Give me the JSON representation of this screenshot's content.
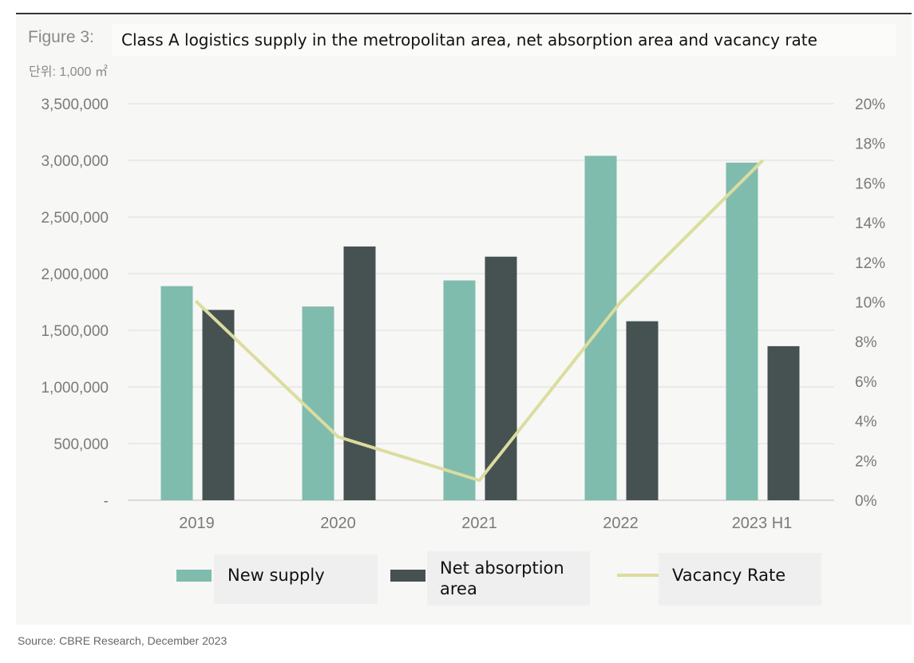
{
  "figure_label": "Figure 3:",
  "title": "Class A logistics supply in the metropolitan area, net absorption area and vacancy rate",
  "unit_label": "단위: 1,000 ㎡",
  "source": "Source: CBRE Research, December 2023",
  "colors": {
    "new_supply": "#7fbcad",
    "net_absorption": "#465252",
    "vacancy_rate": "#dcdca0",
    "grid": "#dedede",
    "tick_text": "#7a7a7a"
  },
  "chart_data": {
    "type": "bar",
    "categories": [
      "2019",
      "2020",
      "2021",
      "2022",
      "2023 H1"
    ],
    "series": [
      {
        "name": "New supply",
        "kind": "bar",
        "axis": "left",
        "values": [
          1890000,
          1710000,
          1940000,
          3040000,
          2980000
        ]
      },
      {
        "name": "Net absorption area",
        "kind": "bar",
        "axis": "left",
        "values": [
          1680000,
          2240000,
          2150000,
          1580000,
          1360000
        ]
      },
      {
        "name": "Vacancy Rate",
        "kind": "line",
        "axis": "right",
        "values": [
          10.0,
          3.2,
          1.0,
          10.0,
          17.1
        ]
      }
    ],
    "ylim": [
      0,
      3500000
    ],
    "y_ticks": [
      0,
      500000,
      1000000,
      1500000,
      2000000,
      2500000,
      3000000,
      3500000
    ],
    "y_tick_labels": [
      "-",
      "500,000",
      "1,000,000",
      "1,500,000",
      "2,000,000",
      "2,500,000",
      "3,000,000",
      "3,500,000"
    ],
    "y2lim": [
      0,
      20
    ],
    "y2_ticks": [
      0,
      2,
      4,
      6,
      8,
      10,
      12,
      14,
      16,
      18,
      20
    ],
    "y2_tick_labels": [
      "0%",
      "2%",
      "4%",
      "6%",
      "8%",
      "10%",
      "12%",
      "14%",
      "16%",
      "18%",
      "20%"
    ],
    "grid": true,
    "legend_position": "bottom"
  },
  "legend": {
    "new_supply": "New supply",
    "net_absorption_line1": "Net absorption",
    "net_absorption_line2": "area",
    "vacancy_rate": "Vacancy Rate"
  }
}
